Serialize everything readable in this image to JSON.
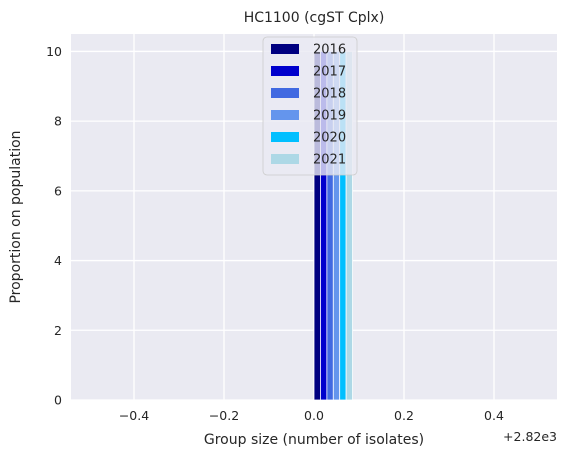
{
  "chart_data": {
    "type": "bar",
    "title": "HC1100 (cgST Cplx)",
    "xlabel": "Group size (number of isolates)",
    "ylabel": "Proportion on population",
    "x_offset_label": "+2.82e3",
    "x_offset": 2820,
    "xlim": [
      -0.54,
      0.54
    ],
    "ylim": [
      0,
      10.5
    ],
    "xticks": [
      -0.4,
      -0.2,
      0.0,
      0.2,
      0.4
    ],
    "xtick_labels": [
      "−0.4",
      "−0.2",
      "0.0",
      "0.2",
      "0.4"
    ],
    "yticks": [
      0,
      2,
      4,
      6,
      8,
      10
    ],
    "ytick_labels": [
      "0",
      "2",
      "4",
      "6",
      "8",
      "10"
    ],
    "grid": true,
    "legend_position": "top-center",
    "series": [
      {
        "name": "2016",
        "color": "#000080",
        "x": 0.0,
        "width": 0.0143,
        "value": 10
      },
      {
        "name": "2017",
        "color": "#0000CD",
        "x": 0.0143,
        "width": 0.0143,
        "value": 10
      },
      {
        "name": "2018",
        "color": "#4169E1",
        "x": 0.0286,
        "width": 0.0143,
        "value": 10
      },
      {
        "name": "2019",
        "color": "#6495ED",
        "x": 0.0429,
        "width": 0.0143,
        "value": 10
      },
      {
        "name": "2020",
        "color": "#00BFFF",
        "x": 0.0571,
        "width": 0.0143,
        "value": 10
      },
      {
        "name": "2021",
        "color": "#ADD8E6",
        "x": 0.0714,
        "width": 0.0143,
        "value": 10
      }
    ]
  }
}
